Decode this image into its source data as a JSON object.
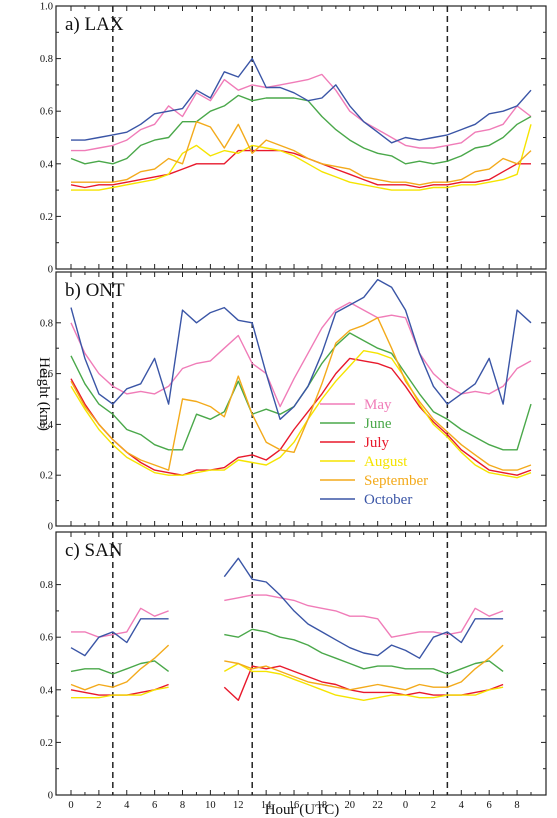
{
  "chart_data": {
    "type": "line",
    "xlabel": "Hour (UTC)",
    "ylabel": "Height (km)",
    "x_ticks": [
      "0",
      "2",
      "4",
      "6",
      "8",
      "10",
      "12",
      "14",
      "16",
      "18",
      "20",
      "22",
      "0",
      "2",
      "4",
      "6",
      "8"
    ],
    "y_ticks": [
      "0",
      "0.2",
      "0.4",
      "0.6",
      "0.8"
    ],
    "y_ticks_top": [
      "0",
      "0.2",
      "0.4",
      "0.6",
      "0.8",
      "1.0"
    ],
    "ylim": [
      0,
      1.0
    ],
    "x_hours_index": [
      0,
      33
    ],
    "reference_lines_x": [
      3,
      13,
      27
    ],
    "legend": [
      {
        "name": "May",
        "color": "#f07cb8"
      },
      {
        "name": "June",
        "color": "#4aa84a"
      },
      {
        "name": "July",
        "color": "#e8192c"
      },
      {
        "name": "August",
        "color": "#f5e400"
      },
      {
        "name": "September",
        "color": "#f3aa1b"
      },
      {
        "name": "October",
        "color": "#3a55a6"
      }
    ],
    "panels": [
      {
        "label": "a) LAX",
        "series": [
          {
            "name": "May",
            "color": "#f07cb8",
            "values": [
              0.45,
              0.45,
              0.46,
              0.47,
              0.49,
              0.53,
              0.55,
              0.62,
              0.58,
              0.67,
              0.64,
              0.72,
              0.68,
              0.7,
              0.69,
              0.7,
              0.71,
              0.72,
              0.74,
              0.68,
              0.6,
              0.56,
              0.53,
              0.5,
              0.47,
              0.46,
              0.46,
              0.47,
              0.48,
              0.52,
              0.53,
              0.55,
              0.62,
              0.58
            ]
          },
          {
            "name": "June",
            "color": "#4aa84a",
            "values": [
              0.42,
              0.4,
              0.41,
              0.4,
              0.42,
              0.47,
              0.49,
              0.5,
              0.56,
              0.56,
              0.6,
              0.62,
              0.66,
              0.64,
              0.65,
              0.65,
              0.65,
              0.64,
              0.58,
              0.53,
              0.49,
              0.46,
              0.44,
              0.43,
              0.4,
              0.41,
              0.4,
              0.41,
              0.43,
              0.46,
              0.47,
              0.5,
              0.55,
              0.58
            ]
          },
          {
            "name": "July",
            "color": "#e8192c",
            "values": [
              0.32,
              0.31,
              0.32,
              0.32,
              0.33,
              0.34,
              0.35,
              0.36,
              0.38,
              0.4,
              0.4,
              0.4,
              0.45,
              0.45,
              0.45,
              0.45,
              0.44,
              0.42,
              0.4,
              0.38,
              0.36,
              0.34,
              0.32,
              0.32,
              0.32,
              0.31,
              0.32,
              0.32,
              0.33,
              0.33,
              0.34,
              0.37,
              0.4,
              0.4
            ]
          },
          {
            "name": "August",
            "color": "#f5e400",
            "values": [
              0.3,
              0.3,
              0.3,
              0.31,
              0.32,
              0.33,
              0.34,
              0.36,
              0.44,
              0.47,
              0.43,
              0.45,
              0.44,
              0.47,
              0.46,
              0.45,
              0.43,
              0.4,
              0.37,
              0.35,
              0.33,
              0.32,
              0.31,
              0.3,
              0.3,
              0.3,
              0.31,
              0.31,
              0.32,
              0.32,
              0.33,
              0.34,
              0.36,
              0.55
            ]
          },
          {
            "name": "September",
            "color": "#f3aa1b",
            "values": [
              0.33,
              0.33,
              0.33,
              0.33,
              0.34,
              0.37,
              0.38,
              0.42,
              0.4,
              0.56,
              0.54,
              0.46,
              0.55,
              0.44,
              0.49,
              0.47,
              0.45,
              0.42,
              0.4,
              0.39,
              0.38,
              0.35,
              0.34,
              0.33,
              0.33,
              0.32,
              0.33,
              0.33,
              0.34,
              0.37,
              0.38,
              0.42,
              0.4,
              0.45
            ]
          },
          {
            "name": "October",
            "color": "#3a55a6",
            "values": [
              0.49,
              0.49,
              0.5,
              0.51,
              0.52,
              0.55,
              0.59,
              0.6,
              0.61,
              0.68,
              0.65,
              0.75,
              0.73,
              0.8,
              0.69,
              0.69,
              0.67,
              0.64,
              0.65,
              0.7,
              0.62,
              0.56,
              0.52,
              0.48,
              0.5,
              0.49,
              0.5,
              0.51,
              0.53,
              0.55,
              0.59,
              0.6,
              0.62,
              0.68
            ]
          }
        ]
      },
      {
        "label": "b) ONT",
        "series": [
          {
            "name": "May",
            "color": "#f07cb8",
            "values": [
              0.8,
              0.68,
              0.6,
              0.55,
              0.52,
              0.53,
              0.52,
              0.55,
              0.62,
              0.64,
              0.65,
              0.7,
              0.75,
              0.64,
              0.6,
              0.47,
              0.58,
              0.68,
              0.78,
              0.85,
              0.88,
              0.85,
              0.82,
              0.83,
              0.82,
              0.68,
              0.6,
              0.55,
              0.52,
              0.53,
              0.52,
              0.55,
              0.62,
              0.65
            ]
          },
          {
            "name": "June",
            "color": "#4aa84a",
            "values": [
              0.67,
              0.56,
              0.48,
              0.44,
              0.38,
              0.36,
              0.32,
              0.3,
              0.3,
              0.44,
              0.42,
              0.45,
              0.57,
              0.44,
              0.46,
              0.44,
              0.47,
              0.55,
              0.64,
              0.71,
              0.76,
              0.73,
              0.7,
              0.68,
              0.6,
              0.52,
              0.45,
              0.42,
              0.38,
              0.35,
              0.32,
              0.3,
              0.3,
              0.48
            ]
          },
          {
            "name": "July",
            "color": "#e8192c",
            "values": [
              0.58,
              0.48,
              0.4,
              0.34,
              0.29,
              0.25,
              0.22,
              0.21,
              0.2,
              0.22,
              0.22,
              0.23,
              0.27,
              0.28,
              0.26,
              0.3,
              0.38,
              0.45,
              0.52,
              0.6,
              0.66,
              0.65,
              0.64,
              0.62,
              0.55,
              0.47,
              0.41,
              0.36,
              0.3,
              0.26,
              0.22,
              0.21,
              0.2,
              0.22
            ]
          },
          {
            "name": "August",
            "color": "#f5e400",
            "values": [
              0.55,
              0.46,
              0.38,
              0.32,
              0.27,
              0.24,
              0.21,
              0.2,
              0.2,
              0.21,
              0.22,
              0.22,
              0.26,
              0.25,
              0.24,
              0.27,
              0.33,
              0.42,
              0.5,
              0.57,
              0.63,
              0.69,
              0.68,
              0.66,
              0.58,
              0.48,
              0.4,
              0.35,
              0.29,
              0.24,
              0.21,
              0.2,
              0.19,
              0.21
            ]
          },
          {
            "name": "September",
            "color": "#f3aa1b",
            "values": [
              0.57,
              0.47,
              0.4,
              0.34,
              0.29,
              0.26,
              0.24,
              0.22,
              0.5,
              0.49,
              0.47,
              0.43,
              0.59,
              0.44,
              0.33,
              0.3,
              0.29,
              0.42,
              0.56,
              0.72,
              0.77,
              0.79,
              0.82,
              0.7,
              0.57,
              0.49,
              0.42,
              0.37,
              0.32,
              0.28,
              0.24,
              0.22,
              0.22,
              0.24
            ]
          },
          {
            "name": "October",
            "color": "#3a55a6",
            "values": [
              0.86,
              0.66,
              0.52,
              0.48,
              0.54,
              0.56,
              0.66,
              0.48,
              0.85,
              0.8,
              0.84,
              0.86,
              0.81,
              0.8,
              0.6,
              0.42,
              0.47,
              0.55,
              0.68,
              0.84,
              0.87,
              0.9,
              0.97,
              0.94,
              0.85,
              0.68,
              0.55,
              0.48,
              0.52,
              0.56,
              0.66,
              0.48,
              0.85,
              0.8
            ]
          }
        ]
      },
      {
        "label": "c) SAN",
        "series": [
          {
            "name": "May",
            "color": "#f07cb8",
            "values": [
              0.62,
              0.62,
              0.6,
              0.61,
              0.62,
              0.71,
              0.68,
              0.7,
              null,
              null,
              null,
              0.74,
              0.75,
              0.76,
              0.76,
              0.75,
              0.74,
              0.72,
              0.71,
              0.7,
              0.68,
              0.68,
              0.67,
              0.6,
              0.61,
              0.62,
              0.62,
              0.61,
              0.62,
              0.71,
              0.68,
              0.7,
              null,
              null
            ]
          },
          {
            "name": "June",
            "color": "#4aa84a",
            "values": [
              0.47,
              0.48,
              0.48,
              0.46,
              0.48,
              0.5,
              0.51,
              0.47,
              null,
              null,
              null,
              0.61,
              0.6,
              0.63,
              0.62,
              0.6,
              0.59,
              0.57,
              0.54,
              0.52,
              0.5,
              0.48,
              0.49,
              0.49,
              0.48,
              0.48,
              0.48,
              0.46,
              0.48,
              0.5,
              0.51,
              0.47,
              null,
              null
            ]
          },
          {
            "name": "July",
            "color": "#e8192c",
            "values": [
              0.4,
              0.39,
              0.38,
              0.38,
              0.38,
              0.39,
              0.4,
              0.42,
              null,
              null,
              null,
              0.41,
              0.36,
              0.49,
              0.48,
              0.49,
              0.47,
              0.45,
              0.43,
              0.42,
              0.4,
              0.39,
              0.39,
              0.39,
              0.38,
              0.39,
              0.38,
              0.38,
              0.38,
              0.39,
              0.4,
              0.42,
              null,
              null
            ]
          },
          {
            "name": "August",
            "color": "#f5e400",
            "values": [
              0.37,
              0.37,
              0.37,
              0.38,
              0.38,
              0.38,
              0.4,
              0.41,
              null,
              null,
              null,
              0.47,
              0.5,
              0.47,
              0.47,
              0.46,
              0.44,
              0.42,
              0.4,
              0.38,
              0.37,
              0.36,
              0.37,
              0.38,
              0.38,
              0.37,
              0.37,
              0.38,
              0.38,
              0.38,
              0.4,
              0.41,
              null,
              null
            ]
          },
          {
            "name": "September",
            "color": "#f3aa1b",
            "values": [
              0.42,
              0.4,
              0.42,
              0.41,
              0.43,
              0.48,
              0.52,
              0.57,
              null,
              null,
              null,
              0.51,
              0.5,
              0.48,
              0.49,
              0.47,
              0.45,
              0.43,
              0.42,
              0.41,
              0.4,
              0.41,
              0.42,
              0.41,
              0.4,
              0.42,
              0.41,
              0.41,
              0.43,
              0.48,
              0.52,
              0.57,
              null,
              null
            ]
          },
          {
            "name": "October",
            "color": "#3a55a6",
            "values": [
              0.56,
              0.53,
              0.6,
              0.62,
              0.58,
              0.67,
              0.67,
              0.67,
              null,
              null,
              null,
              0.83,
              0.9,
              0.82,
              0.81,
              0.76,
              0.7,
              0.65,
              0.62,
              0.59,
              0.56,
              0.54,
              0.53,
              0.57,
              0.55,
              0.52,
              0.6,
              0.62,
              0.58,
              0.67,
              0.67,
              0.67,
              null,
              null
            ]
          }
        ]
      }
    ]
  }
}
